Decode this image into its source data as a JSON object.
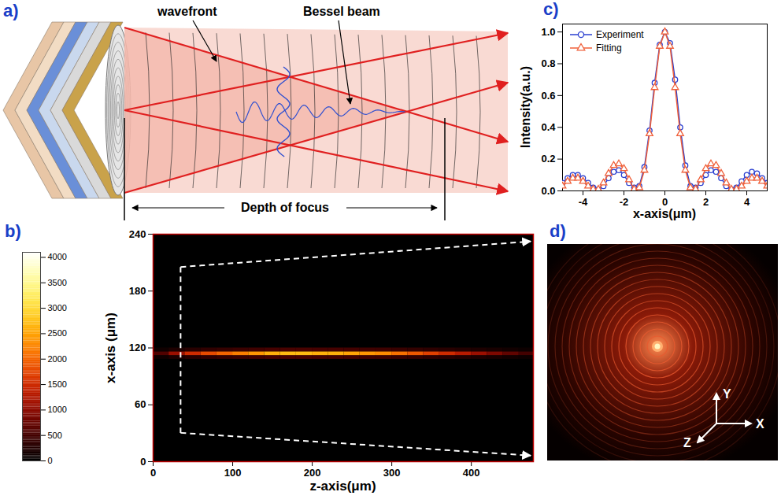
{
  "diagram": {
    "title": "a)",
    "wavefront_label": "wavefront",
    "beam_label": "Bessel beam",
    "depth_label": "Depth of focus"
  },
  "chart_data": [
    {
      "type": "heatmap",
      "title": "b)",
      "xlabel": "z-axis(μm)",
      "ylabel": "x-axis (μm)",
      "xlim": [
        0,
        478
      ],
      "xticks": [
        0,
        100,
        200,
        300,
        400
      ],
      "ylim": [
        0,
        240
      ],
      "yticks": [
        0,
        60,
        120,
        180,
        240
      ],
      "x": [
        10,
        30,
        50,
        70,
        90,
        110,
        130,
        150,
        170,
        190,
        210,
        230,
        250,
        270,
        290,
        310,
        330,
        350,
        370,
        390,
        410,
        430,
        450,
        470
      ],
      "y": [
        110,
        114,
        118
      ],
      "cells": [
        [
          120,
          220,
          300,
          360,
          400,
          440,
          480,
          520,
          540,
          540,
          520,
          520,
          500,
          480,
          460,
          420,
          380,
          340,
          300,
          260,
          220,
          180,
          140,
          100
        ],
        [
          600,
          1100,
          1500,
          1800,
          2000,
          2200,
          2400,
          2600,
          2700,
          2700,
          2600,
          2600,
          2500,
          2400,
          2300,
          2100,
          1900,
          1700,
          1500,
          1300,
          1100,
          900,
          700,
          500
        ],
        [
          120,
          220,
          300,
          360,
          400,
          440,
          480,
          520,
          540,
          540,
          520,
          520,
          500,
          480,
          460,
          420,
          380,
          340,
          300,
          260,
          220,
          180,
          140,
          100
        ]
      ],
      "colorbar": {
        "range": [
          0,
          4100
        ],
        "ticks": [
          0,
          500,
          1000,
          1500,
          2000,
          2500,
          3000,
          3500,
          4000
        ]
      }
    },
    {
      "type": "line",
      "title": "c)",
      "xlabel": "x-axis(μm)",
      "ylabel": "Intensity(a.u.)",
      "xlim": [
        -5,
        5
      ],
      "xticks": [
        -4,
        -2,
        0,
        2,
        4
      ],
      "ylim": [
        0,
        1.05
      ],
      "yticks": [
        {
          "value": 0,
          "label": "0.0"
        },
        {
          "value": 0.2,
          "label": "0.2"
        },
        {
          "value": 0.4,
          "label": "0.4"
        },
        {
          "value": 0.6,
          "label": "0.6"
        },
        {
          "value": 0.8,
          "label": "0.8"
        },
        {
          "value": 1,
          "label": "1.0"
        }
      ],
      "legend": "top-left",
      "x": [
        -5,
        -4.75,
        -4.5,
        -4.25,
        -4,
        -3.75,
        -3.5,
        -3.25,
        -3,
        -2.75,
        -2.5,
        -2.25,
        -2,
        -1.75,
        -1.5,
        -1.25,
        -1,
        -0.75,
        -0.5,
        -0.25,
        0,
        0.25,
        0.5,
        0.75,
        1,
        1.25,
        1.5,
        1.75,
        2,
        2.25,
        2.5,
        2.75,
        3,
        3.25,
        3.5,
        3.75,
        4,
        4.25,
        4.5,
        4.75,
        5
      ],
      "series": [
        {
          "name": "Experiment",
          "color": "#2a3fd0",
          "marker": "circle",
          "line_style": "solid",
          "values": [
            0.05,
            0.08,
            0.1,
            0.1,
            0.08,
            0.05,
            0.02,
            0.01,
            0.03,
            0.08,
            0.12,
            0.13,
            0.1,
            0.05,
            0.02,
            0.03,
            0.15,
            0.38,
            0.68,
            0.92,
            1.0,
            0.93,
            0.7,
            0.4,
            0.16,
            0.03,
            0.02,
            0.05,
            0.1,
            0.13,
            0.12,
            0.08,
            0.03,
            0.01,
            0.02,
            0.06,
            0.1,
            0.12,
            0.11,
            0.08,
            0.05
          ]
        },
        {
          "name": "Fitting",
          "color": "#f0603a",
          "marker": "triangle",
          "line_style": "solid",
          "values": [
            0.03,
            0.06,
            0.08,
            0.08,
            0.06,
            0.03,
            0.01,
            0.01,
            0.05,
            0.11,
            0.16,
            0.17,
            0.14,
            0.07,
            0.01,
            0.02,
            0.13,
            0.36,
            0.65,
            0.91,
            1.0,
            0.91,
            0.65,
            0.36,
            0.13,
            0.02,
            0.01,
            0.07,
            0.14,
            0.17,
            0.16,
            0.11,
            0.05,
            0.01,
            0.01,
            0.03,
            0.06,
            0.08,
            0.08,
            0.06,
            0.03
          ]
        }
      ]
    }
  ],
  "image": {
    "title": "d)",
    "axes": {
      "y": "Y",
      "x": "X",
      "z": "Z"
    }
  }
}
